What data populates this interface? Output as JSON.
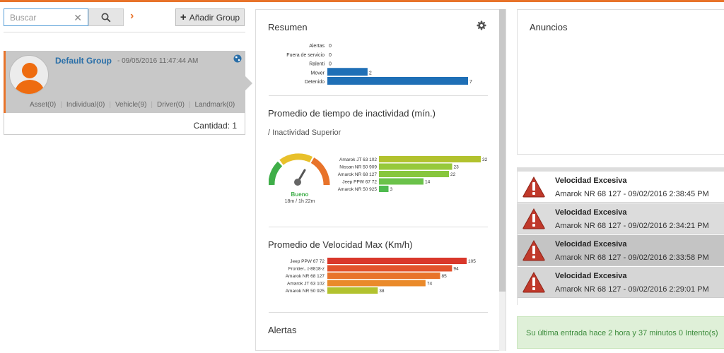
{
  "search": {
    "placeholder": "Buscar",
    "value": ""
  },
  "toolbar": {
    "add_label": "Añadir Group"
  },
  "group": {
    "name": "Default Group",
    "date": "- 09/05/2016 11:47:44 AM",
    "counts": [
      "Asset(0)",
      "Individual(0)",
      "Vehicle(9)",
      "Driver(0)",
      "Landmark(0)"
    ]
  },
  "cantidad": "Cantidad: 1",
  "resumen": {
    "title": "Resumen",
    "chart_data": {
      "type": "bar",
      "orientation": "horizontal",
      "categories": [
        "Alertas",
        "Fuera de servicio",
        "Ralenti",
        "Mover",
        "Detenido"
      ],
      "values": [
        0,
        0,
        0,
        2,
        7
      ],
      "xlim": [
        0,
        7
      ],
      "color": "#1f6fb6"
    }
  },
  "inactividad": {
    "title": "Promedio de tiempo de inactividad (mín.)",
    "subtitle": "/ Inactividad Superior",
    "gauge_label": "Bueno",
    "gauge_value": "18m / 1h 22m",
    "chart_data": {
      "type": "bar",
      "orientation": "horizontal",
      "categories": [
        "Amarok JT 63 102",
        "Nissan NR 50 909",
        "Amarok NR 68 127",
        "Jeep PPW 67 72",
        "Amarok NR 50 925"
      ],
      "values": [
        32,
        23,
        22,
        14,
        3
      ],
      "colors": [
        "#b2c22e",
        "#97c93b",
        "#87c63c",
        "#6bc24a",
        "#4fbb4f"
      ],
      "xlim": [
        0,
        32
      ]
    }
  },
  "velocidad": {
    "title": "Promedio de Velocidad Max (Km/h)",
    "chart_data": {
      "type": "bar",
      "orientation": "horizontal",
      "categories": [
        "Jeep PPW 67 72",
        "Frontier...t-8818-z",
        "Amarok NR 68 127",
        "Amarok JT 63 102",
        "Amarok NR 50 925"
      ],
      "values": [
        105,
        94,
        85,
        74,
        38
      ],
      "colors": [
        "#d9372b",
        "#e2522c",
        "#e8732a",
        "#ea8a2a",
        "#b2c22e"
      ],
      "xlim": [
        0,
        105
      ]
    }
  },
  "alertas_title": "Alertas",
  "anuncios_title": "Anuncios",
  "alerts": [
    {
      "title": "Velocidad Excesiva",
      "detail": "Amarok NR 68 127 - 09/02/2016 2:38:45 PM",
      "bg": "#ffffff"
    },
    {
      "title": "Velocidad Excesiva",
      "detail": "Amarok NR 68 127 - 09/02/2016 2:34:21 PM",
      "bg": "#dcdcdc"
    },
    {
      "title": "Velocidad Excesiva",
      "detail": "Amarok NR 68 127 - 09/02/2016 2:33:58 PM",
      "bg": "#c4c4c4"
    },
    {
      "title": "Velocidad Excesiva",
      "detail": "Amarok NR 68 127 - 09/02/2016 2:29:01 PM",
      "bg": "#d6d6d6"
    }
  ],
  "status": "Su última entrada hace 2 hora y 37 minutos 0 Intento(s)",
  "colors": {
    "accent": "#e8732a",
    "link": "#2a6fa8",
    "alert": "#c0392b",
    "success": "#3c8c3c"
  }
}
